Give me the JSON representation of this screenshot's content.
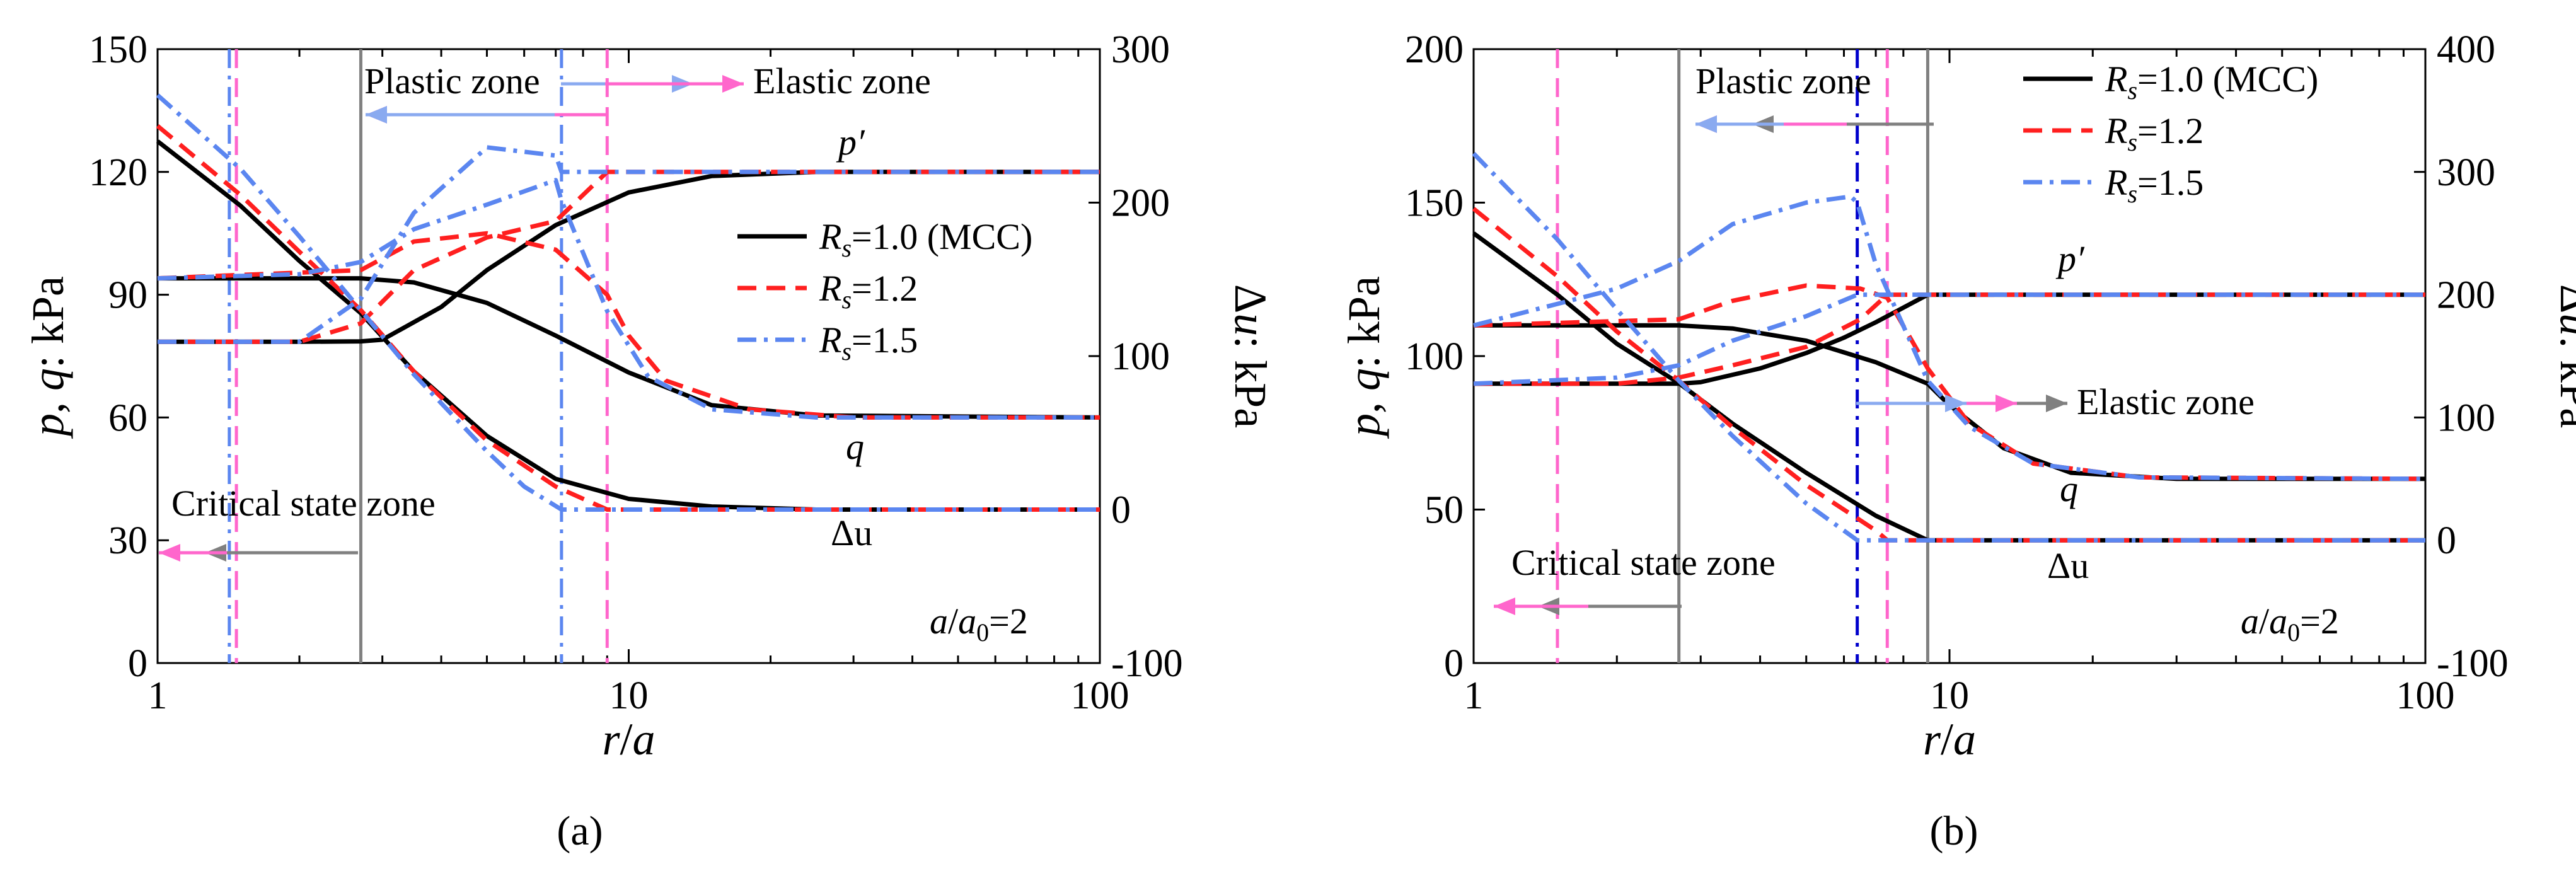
{
  "figure": {
    "caption_a": "(a)",
    "caption_b": "(b)",
    "panels": [
      {
        "id": "a",
        "caption": "(a)",
        "xlabel": "r/a",
        "ylabel_left": "p, q: kPa",
        "ylabel_right": "Δu: kPa",
        "xlim": [
          1,
          100
        ],
        "ylim_left": [
          0,
          150
        ],
        "ylim_right": [
          -100,
          300
        ],
        "left_ticks": [
          "0",
          "30",
          "60",
          "90",
          "120",
          "150"
        ],
        "right_ticks": [
          "-100",
          "0",
          "100",
          "200",
          "300"
        ],
        "x_ticks": [
          "1",
          "10",
          "100"
        ],
        "curve_labels": {
          "p": "p′",
          "q": "q",
          "du": "Δu"
        },
        "ratio_label": "a/a0=2",
        "zones": {
          "plastic": "Plastic zone",
          "elastic": "Elastic zone",
          "critical": "Critical state zone"
        },
        "legend": [
          {
            "label": "Rs=1.0 (MCC)",
            "color": "#000000",
            "style": "solid"
          },
          {
            "label": "Rs=1.2",
            "color": "#ff1f1f",
            "style": "dash"
          },
          {
            "label": "Rs=1.5",
            "color": "#5b86f0",
            "style": "dashdot"
          }
        ],
        "vlines": [
          {
            "x": 1.42,
            "color": "#5b86f0",
            "style": "dashdot"
          },
          {
            "x": 1.47,
            "color": "#ff66cc",
            "style": "dash"
          },
          {
            "x": 2.7,
            "color": "#808080",
            "style": "solid"
          },
          {
            "x": 7.2,
            "color": "#5b86f0",
            "style": "dashdot"
          },
          {
            "x": 9.0,
            "color": "#ff66cc",
            "style": "dash"
          }
        ]
      },
      {
        "id": "b",
        "caption": "(b)",
        "xlabel": "r/a",
        "ylabel_left": "p, q: kPa",
        "ylabel_right": "Δu: kPa",
        "xlim": [
          1,
          100
        ],
        "ylim_left": [
          0,
          200
        ],
        "ylim_right": [
          -100,
          400
        ],
        "left_ticks": [
          "0",
          "50",
          "100",
          "150",
          "200"
        ],
        "right_ticks": [
          "-100",
          "0",
          "100",
          "200",
          "300",
          "400"
        ],
        "x_ticks": [
          "1",
          "10",
          "100"
        ],
        "curve_labels": {
          "p": "p′",
          "q": "q",
          "du": "Δu"
        },
        "ratio_label": "a/a0=2",
        "zones": {
          "plastic": "Plastic zone",
          "elastic": "Elastic zone",
          "critical": "Critical state zone"
        },
        "legend": [
          {
            "label": "Rs=1.0 (MCC)",
            "color": "#000000",
            "style": "solid"
          },
          {
            "label": "Rs=1.2",
            "color": "#ff1f1f",
            "style": "dash"
          },
          {
            "label": "Rs=1.5",
            "color": "#5b86f0",
            "style": "dashdot"
          }
        ],
        "vlines": [
          {
            "x": 1.5,
            "color": "#ff66cc",
            "style": "dash"
          },
          {
            "x": 2.7,
            "color": "#808080",
            "style": "solid"
          },
          {
            "x": 6.4,
            "color": "#0000cc",
            "style": "dashdot"
          },
          {
            "x": 7.4,
            "color": "#ff66cc",
            "style": "dash"
          },
          {
            "x": 9.0,
            "color": "#808080",
            "style": "solid"
          }
        ]
      }
    ]
  },
  "chart_data": [
    {
      "type": "line",
      "title": "(a)",
      "xlabel": "r/a",
      "ylabel": "p, q: kPa",
      "y2label": "Δu: kPa",
      "xscale": "log",
      "xlim": [
        1,
        100
      ],
      "ylim": [
        0,
        150
      ],
      "y2lim": [
        -100,
        300
      ],
      "series": [
        {
          "name": "p′ Rs=1.0 (MCC)",
          "axis": "left",
          "color": "#000000",
          "style": "solid",
          "points": [
            [
              1,
              78.5
            ],
            [
              2,
              78.5
            ],
            [
              2.7,
              78.6
            ],
            [
              3,
              79
            ],
            [
              4,
              87
            ],
            [
              5,
              96
            ],
            [
              7,
              107
            ],
            [
              10,
              115
            ],
            [
              15,
              119
            ],
            [
              25,
              120
            ],
            [
              100,
              120
            ]
          ]
        },
        {
          "name": "q Rs=1.0 (MCC)",
          "axis": "left",
          "color": "#000000",
          "style": "solid",
          "points": [
            [
              1,
              94
            ],
            [
              2.7,
              94
            ],
            [
              3.5,
              93
            ],
            [
              5,
              88
            ],
            [
              7,
              80
            ],
            [
              10,
              71
            ],
            [
              15,
              63
            ],
            [
              25,
              60.5
            ],
            [
              100,
              60
            ]
          ]
        },
        {
          "name": "Δu Rs=1.0 (MCC)",
          "axis": "right",
          "color": "#000000",
          "style": "solid",
          "points": [
            [
              1,
              240
            ],
            [
              1.5,
              198
            ],
            [
              2,
              162
            ],
            [
              2.7,
              128
            ],
            [
              3.5,
              90
            ],
            [
              5,
              48
            ],
            [
              7,
              20
            ],
            [
              10,
              7
            ],
            [
              15,
              2
            ],
            [
              25,
              0
            ],
            [
              100,
              0
            ]
          ]
        },
        {
          "name": "p′ Rs=1.2",
          "axis": "left",
          "color": "#ff1f1f",
          "style": "dash",
          "points": [
            [
              1,
              78.5
            ],
            [
              2,
              78.5
            ],
            [
              2.7,
              83
            ],
            [
              3.5,
              96
            ],
            [
              5,
              104
            ],
            [
              7,
              108
            ],
            [
              9,
              120
            ],
            [
              100,
              120
            ]
          ]
        },
        {
          "name": "q Rs=1.2",
          "axis": "left",
          "color": "#ff1f1f",
          "style": "dash",
          "points": [
            [
              1,
              94
            ],
            [
              2.7,
              96
            ],
            [
              3.5,
              103
            ],
            [
              5,
              105
            ],
            [
              7,
              101
            ],
            [
              9,
              90
            ],
            [
              10,
              80
            ],
            [
              12,
              69
            ],
            [
              18,
              62
            ],
            [
              30,
              60
            ],
            [
              100,
              60
            ]
          ]
        },
        {
          "name": "Δu Rs=1.2",
          "axis": "right",
          "color": "#ff1f1f",
          "style": "dash",
          "points": [
            [
              1,
              250
            ],
            [
              1.5,
              205
            ],
            [
              2,
              168
            ],
            [
              2.7,
              130
            ],
            [
              3.5,
              90
            ],
            [
              5,
              45
            ],
            [
              7,
              15
            ],
            [
              9,
              0
            ],
            [
              100,
              0
            ]
          ]
        },
        {
          "name": "p′ Rs=1.5",
          "axis": "left",
          "color": "#5b86f0",
          "style": "dashdot",
          "points": [
            [
              1,
              78.5
            ],
            [
              2,
              78.5
            ],
            [
              2.7,
              89
            ],
            [
              3.5,
              110
            ],
            [
              5,
              126
            ],
            [
              7,
              124
            ],
            [
              7.2,
              120
            ],
            [
              100,
              120
            ]
          ]
        },
        {
          "name": "q Rs=1.5",
          "axis": "left",
          "color": "#5b86f0",
          "style": "dashdot",
          "points": [
            [
              1,
              94
            ],
            [
              2,
              95
            ],
            [
              2.7,
              98
            ],
            [
              3.5,
              106
            ],
            [
              5,
              112
            ],
            [
              7,
              118
            ],
            [
              7.2,
              113
            ],
            [
              9,
              86
            ],
            [
              11,
              70
            ],
            [
              15,
              62
            ],
            [
              25,
              60
            ],
            [
              100,
              60
            ]
          ]
        },
        {
          "name": "Δu Rs=1.5",
          "axis": "right",
          "color": "#5b86f0",
          "style": "dashdot",
          "points": [
            [
              1,
              270
            ],
            [
              1.5,
              222
            ],
            [
              2,
              178
            ],
            [
              2.7,
              130
            ],
            [
              3.5,
              88
            ],
            [
              5,
              38
            ],
            [
              6,
              15
            ],
            [
              7.2,
              0
            ],
            [
              100,
              0
            ]
          ]
        }
      ]
    },
    {
      "type": "line",
      "title": "(b)",
      "xlabel": "r/a",
      "ylabel": "p, q: kPa",
      "y2label": "Δu: kPa",
      "xscale": "log",
      "xlim": [
        1,
        100
      ],
      "ylim": [
        0,
        200
      ],
      "y2lim": [
        -100,
        400
      ],
      "series": [
        {
          "name": "p′ Rs=1.0 (MCC)",
          "axis": "left",
          "color": "#000000",
          "style": "solid",
          "points": [
            [
              1,
              91
            ],
            [
              2,
              91
            ],
            [
              2.7,
              91
            ],
            [
              3,
              91.5
            ],
            [
              4,
              96
            ],
            [
              5,
              101
            ],
            [
              6,
              106
            ],
            [
              7,
              111
            ],
            [
              9,
              120
            ],
            [
              100,
              120
            ]
          ]
        },
        {
          "name": "q Rs=1.0 (MCC)",
          "axis": "left",
          "color": "#000000",
          "style": "solid",
          "points": [
            [
              1,
              110
            ],
            [
              2.7,
              110
            ],
            [
              3.5,
              109
            ],
            [
              5,
              105
            ],
            [
              7,
              98
            ],
            [
              9,
              91
            ],
            [
              10,
              84
            ],
            [
              13,
              70
            ],
            [
              18,
              62
            ],
            [
              30,
              60
            ],
            [
              100,
              60
            ]
          ]
        },
        {
          "name": "Δu Rs=1.0 (MCC)",
          "axis": "right",
          "color": "#000000",
          "style": "solid",
          "points": [
            [
              1,
              250
            ],
            [
              1.5,
              200
            ],
            [
              2,
              160
            ],
            [
              2.7,
              128
            ],
            [
              3.5,
              95
            ],
            [
              5,
              55
            ],
            [
              7,
              20
            ],
            [
              9,
              0
            ],
            [
              100,
              0
            ]
          ]
        },
        {
          "name": "p′ Rs=1.2",
          "axis": "left",
          "color": "#ff1f1f",
          "style": "dash",
          "points": [
            [
              1,
              91
            ],
            [
              2,
              91
            ],
            [
              2.7,
              93
            ],
            [
              3.5,
              97
            ],
            [
              5,
              103
            ],
            [
              6.5,
              112
            ],
            [
              7.4,
              120
            ],
            [
              100,
              120
            ]
          ]
        },
        {
          "name": "q Rs=1.2",
          "axis": "left",
          "color": "#ff1f1f",
          "style": "dash",
          "points": [
            [
              1,
              110
            ],
            [
              2.7,
              112
            ],
            [
              3.5,
              118
            ],
            [
              5,
              123
            ],
            [
              6.5,
              122
            ],
            [
              7.4,
              119
            ],
            [
              9,
              96
            ],
            [
              11,
              78
            ],
            [
              15,
              65
            ],
            [
              25,
              60.5
            ],
            [
              100,
              60
            ]
          ]
        },
        {
          "name": "Δu Rs=1.2",
          "axis": "right",
          "color": "#ff1f1f",
          "style": "dash",
          "points": [
            [
              1,
              270
            ],
            [
              1.5,
              215
            ],
            [
              2,
              170
            ],
            [
              2.7,
              130
            ],
            [
              3.5,
              92
            ],
            [
              5,
              45
            ],
            [
              7,
              8
            ],
            [
              7.4,
              0
            ],
            [
              100,
              0
            ]
          ]
        },
        {
          "name": "p′ Rs=1.5",
          "axis": "left",
          "color": "#5b86f0",
          "style": "dashdot",
          "points": [
            [
              1,
              91
            ],
            [
              2,
              93
            ],
            [
              2.7,
              97
            ],
            [
              3.5,
              105
            ],
            [
              5,
              113
            ],
            [
              6.4,
              120
            ],
            [
              100,
              120
            ]
          ]
        },
        {
          "name": "q Rs=1.5",
          "axis": "left",
          "color": "#5b86f0",
          "style": "dashdot",
          "points": [
            [
              1,
              110
            ],
            [
              2,
              122
            ],
            [
              2.7,
              131
            ],
            [
              3.5,
              143
            ],
            [
              5,
              150
            ],
            [
              6.2,
              152
            ],
            [
              6.4,
              150
            ],
            [
              7,
              130
            ],
            [
              9,
              92
            ],
            [
              11,
              77
            ],
            [
              15,
              65
            ],
            [
              25,
              60.5
            ],
            [
              100,
              60
            ]
          ]
        },
        {
          "name": "Δu Rs=1.5",
          "axis": "right",
          "color": "#5b86f0",
          "style": "dashdot",
          "points": [
            [
              1,
              315
            ],
            [
              1.5,
              245
            ],
            [
              2,
              188
            ],
            [
              2.7,
              130
            ],
            [
              3.5,
              85
            ],
            [
              5,
              30
            ],
            [
              6.4,
              0
            ],
            [
              100,
              0
            ]
          ]
        }
      ]
    }
  ]
}
